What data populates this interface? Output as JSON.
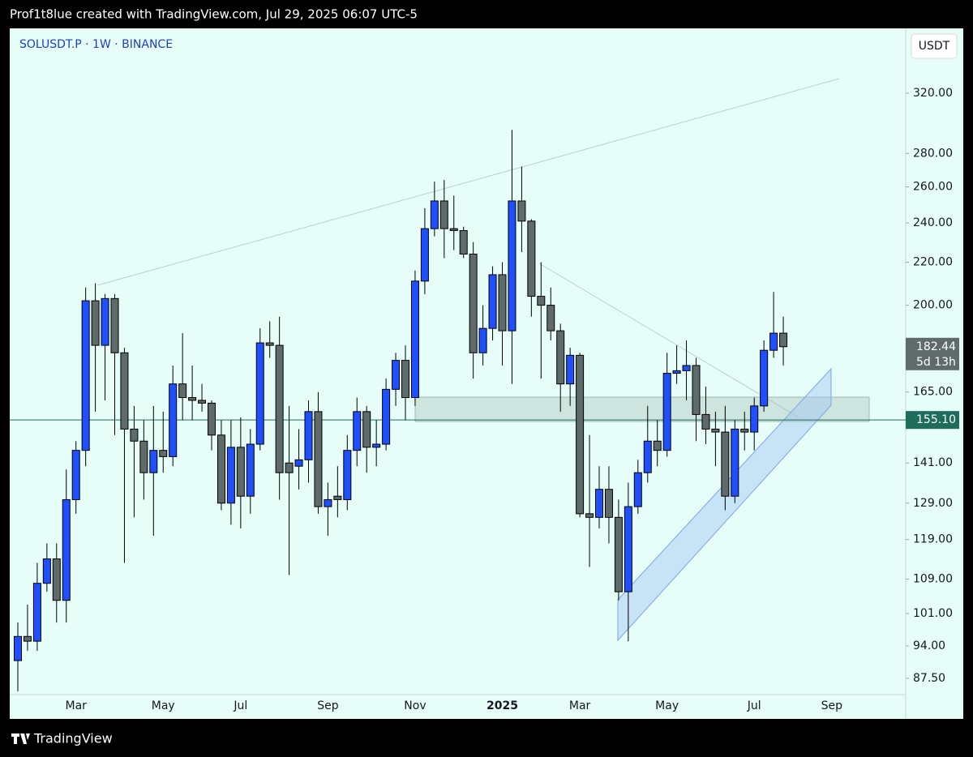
{
  "chart_data": {
    "type": "candlestick",
    "credit": "Prof1t8lue created with TradingView.com, Jul 29, 2025 06:07 UTC-5",
    "title": "SOLUSDT.P · 1W · BINANCE",
    "currency": "USDT",
    "brand": "TradingView",
    "countdown": "5d 13h",
    "last_label": "182.44",
    "price_line": {
      "value": 155.1,
      "label": "155.10"
    },
    "log_scale": true,
    "grid": false,
    "up_color": "#1f4fff",
    "down_color": "#5e6b6a",
    "categories": [
      null,
      null,
      null,
      null,
      null,
      null,
      "Mar",
      null,
      null,
      null,
      null,
      null,
      null,
      null,
      null,
      "May",
      null,
      null,
      null,
      null,
      null,
      null,
      null,
      "Jul",
      null,
      null,
      null,
      null,
      null,
      null,
      null,
      null,
      "Sep",
      null,
      null,
      null,
      null,
      null,
      null,
      null,
      null,
      "Nov",
      null,
      null,
      null,
      null,
      null,
      null,
      null,
      null,
      "2025",
      null,
      null,
      null,
      null,
      null,
      null,
      null,
      "Mar",
      null,
      null,
      null,
      null,
      null,
      null,
      null,
      null,
      "May",
      null,
      null,
      null,
      null,
      null,
      null,
      null,
      null,
      "Jul",
      null,
      null,
      null,
      null,
      null,
      null,
      null,
      "Sep",
      null,
      null,
      null,
      null,
      null,
      null
    ],
    "open": [
      91,
      96,
      95,
      108,
      114,
      104,
      130,
      145,
      202,
      183,
      203,
      180,
      152,
      148,
      138,
      145,
      143,
      168,
      163,
      162,
      161,
      150,
      129,
      146,
      131,
      147,
      184,
      183,
      141,
      140,
      142,
      158,
      128,
      131,
      130,
      145,
      158,
      146,
      147,
      166,
      177,
      163,
      211,
      237,
      252,
      237,
      236,
      224,
      180,
      190,
      214,
      189,
      252,
      241,
      204,
      200,
      189,
      168,
      179,
      126,
      125,
      133,
      125,
      106,
      128,
      138,
      148,
      145,
      172,
      173,
      175,
      157,
      152,
      151,
      131,
      152,
      151,
      160,
      181,
      188,
      null,
      null,
      null,
      null,
      null,
      null,
      null,
      null,
      null,
      null,
      null
    ],
    "high": [
      99,
      103,
      113,
      118,
      118,
      139,
      148,
      208,
      210,
      205,
      205,
      182,
      160,
      155,
      160,
      158,
      175,
      188,
      175,
      168,
      162,
      155,
      155,
      156,
      152,
      190,
      193,
      195,
      160,
      152,
      162,
      165,
      135,
      140,
      150,
      163,
      160,
      155,
      170,
      180,
      183,
      216,
      248,
      263,
      264,
      255,
      238,
      230,
      200,
      218,
      220,
      295,
      272,
      242,
      220,
      208,
      192,
      182,
      180,
      150,
      140,
      140,
      130,
      135,
      142,
      160,
      155,
      180,
      183,
      185,
      178,
      167,
      158,
      160,
      155,
      158,
      163,
      185,
      206,
      195,
      null,
      null,
      null,
      null,
      null,
      null,
      null,
      null,
      null,
      null,
      null
    ],
    "low": [
      85,
      93,
      93,
      106,
      99,
      99,
      126,
      140,
      158,
      162,
      150,
      113,
      125,
      130,
      120,
      138,
      140,
      155,
      155,
      158,
      145,
      127,
      123,
      122,
      126,
      145,
      178,
      130,
      110,
      133,
      135,
      126,
      120,
      125,
      127,
      140,
      138,
      140,
      145,
      160,
      155,
      160,
      205,
      233,
      222,
      226,
      222,
      170,
      175,
      185,
      175,
      168,
      225,
      195,
      170,
      185,
      158,
      160,
      125,
      112,
      122,
      118,
      104,
      95,
      126,
      135,
      140,
      143,
      168,
      162,
      148,
      147,
      140,
      127,
      129,
      145,
      145,
      158,
      178,
      175,
      null,
      null,
      null,
      null,
      null,
      null,
      null,
      null,
      null,
      null,
      null
    ],
    "close": [
      96,
      95,
      108,
      114,
      104,
      130,
      145,
      202,
      183,
      203,
      180,
      152,
      148,
      138,
      145,
      143,
      168,
      163,
      162,
      161,
      150,
      129,
      146,
      131,
      147,
      184,
      183,
      138,
      138,
      142,
      158,
      128,
      130,
      130,
      145,
      158,
      146,
      147,
      166,
      177,
      163,
      211,
      237,
      252,
      237,
      236,
      224,
      180,
      190,
      214,
      189,
      252,
      241,
      204,
      200,
      189,
      168,
      179,
      126,
      125,
      133,
      125,
      106,
      128,
      138,
      148,
      145,
      172,
      173,
      175,
      157,
      152,
      151,
      131,
      152,
      151,
      160,
      181,
      188,
      182.44,
      null,
      null,
      null,
      null,
      null,
      null,
      null,
      null,
      null,
      null,
      null
    ],
    "ylim": [
      84.7,
      369.4
    ],
    "yticks": [
      {
        "value": 87.5,
        "label": "87.50"
      },
      {
        "value": 94,
        "label": "94.00"
      },
      {
        "value": 101,
        "label": "101.00"
      },
      {
        "value": 109,
        "label": "109.00"
      },
      {
        "value": 119,
        "label": "119.00"
      },
      {
        "value": 129,
        "label": "129.00"
      },
      {
        "value": 141,
        "label": "141.00"
      },
      {
        "value": 165,
        "label": "165.00"
      },
      {
        "value": 200,
        "label": "200.00"
      },
      {
        "value": 220,
        "label": "220.00"
      },
      {
        "value": 240,
        "label": "240.00"
      },
      {
        "value": 260,
        "label": "260.00"
      },
      {
        "value": 280,
        "label": "280.00"
      },
      {
        "value": 320,
        "label": "320.00"
      }
    ]
  }
}
